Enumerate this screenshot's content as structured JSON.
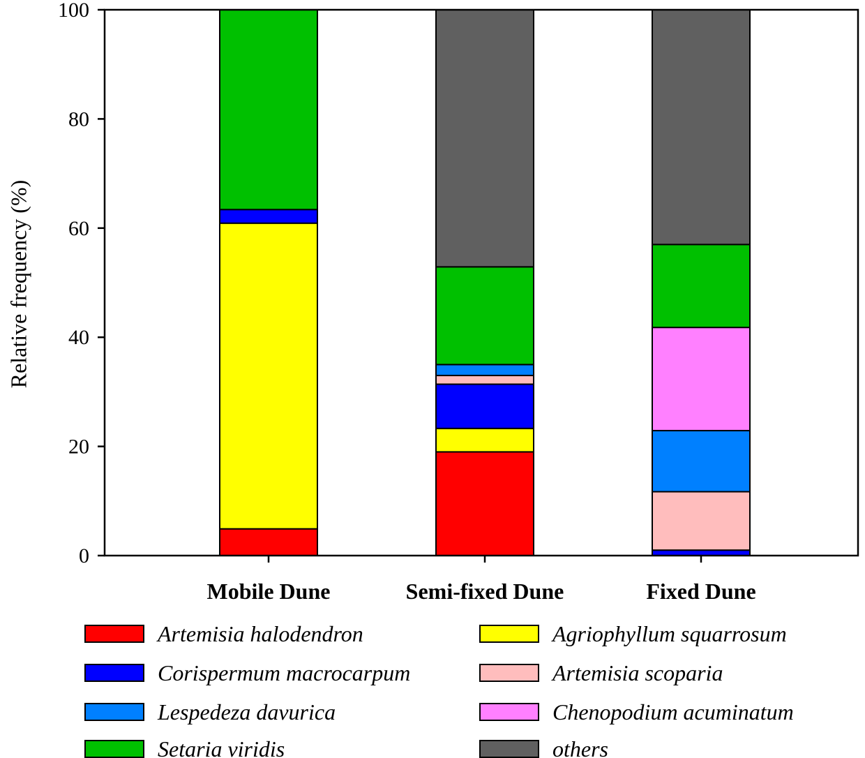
{
  "chart_data": {
    "type": "bar",
    "stacked": true,
    "title": "",
    "xlabel": "",
    "ylabel": "Relative frequency (%)",
    "ylim": [
      0,
      100
    ],
    "yticks": [
      0,
      20,
      40,
      60,
      80,
      100
    ],
    "grid": false,
    "legend_position": "bottom",
    "categories": [
      "Mobile Dune",
      "Semi-fixed Dune",
      "Fixed Dune"
    ],
    "series": [
      {
        "name": "Artemisia halodendron",
        "color": "#ff0000",
        "values": [
          4.9,
          19.0,
          0.0
        ]
      },
      {
        "name": "Agriophyllum squarrosum",
        "color": "#ffff00",
        "values": [
          56.0,
          4.3,
          0.0
        ]
      },
      {
        "name": "Corispermum macrocarpum",
        "color": "#0000ff",
        "values": [
          2.5,
          8.1,
          1.0
        ]
      },
      {
        "name": "Artemisia scoparia",
        "color": "#ffbdbd",
        "values": [
          0.0,
          1.6,
          10.7
        ]
      },
      {
        "name": "Lespedeza davurica",
        "color": "#0080ff",
        "values": [
          0.0,
          2.0,
          11.2
        ]
      },
      {
        "name": "Chenopodium acuminatum",
        "color": "#ff80ff",
        "values": [
          0.0,
          0.0,
          18.9
        ]
      },
      {
        "name": "Setaria viridis",
        "color": "#00c000",
        "values": [
          36.6,
          17.9,
          15.2
        ]
      },
      {
        "name": "others",
        "color": "#606060",
        "values": [
          0.0,
          47.1,
          43.0
        ]
      }
    ],
    "legend_order": [
      "Artemisia halodendron",
      "Agriophyllum squarrosum",
      "Corispermum macrocarpum",
      "Artemisia scoparia",
      "Lespedeza davurica",
      "Chenopodium acuminatum",
      "Setaria viridis",
      "others"
    ]
  }
}
